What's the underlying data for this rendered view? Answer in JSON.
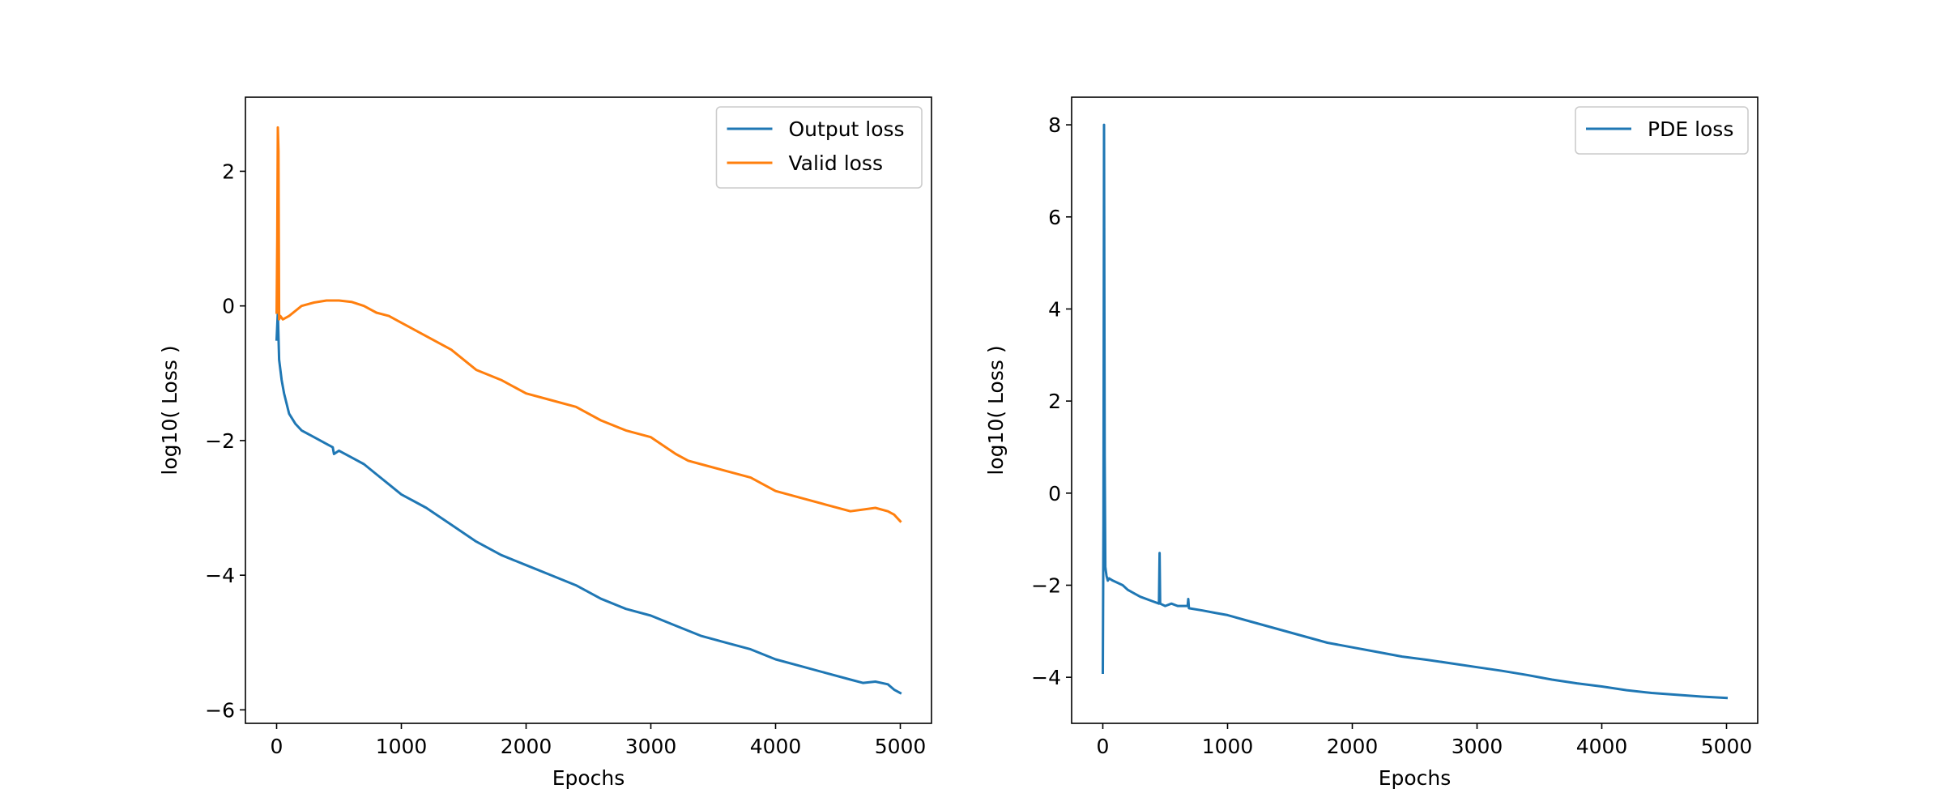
{
  "chart_data": [
    {
      "type": "line",
      "title": "",
      "xlabel": "Epochs",
      "ylabel": "log10( Loss )",
      "xlim": [
        -250,
        5250
      ],
      "ylim": [
        -6.2,
        3.1
      ],
      "xticks": [
        0,
        1000,
        2000,
        3000,
        4000,
        5000
      ],
      "yticks": [
        2,
        0,
        -2,
        -4,
        -6
      ],
      "grid": false,
      "legend_position": "top-right",
      "series": [
        {
          "name": "Output loss",
          "color": "#1f77b4",
          "x": [
            0,
            10,
            20,
            40,
            60,
            80,
            100,
            150,
            200,
            300,
            400,
            450,
            460,
            500,
            600,
            700,
            800,
            900,
            1000,
            1200,
            1400,
            1600,
            1800,
            2000,
            2200,
            2400,
            2600,
            2800,
            3000,
            3200,
            3400,
            3600,
            3800,
            4000,
            4200,
            4400,
            4600,
            4700,
            4800,
            4900,
            4950,
            5000
          ],
          "y": [
            -0.5,
            -0.1,
            -0.8,
            -1.1,
            -1.3,
            -1.45,
            -1.6,
            -1.75,
            -1.85,
            -1.95,
            -2.05,
            -2.1,
            -2.2,
            -2.15,
            -2.25,
            -2.35,
            -2.5,
            -2.65,
            -2.8,
            -3.0,
            -3.25,
            -3.5,
            -3.7,
            -3.85,
            -4.0,
            -4.15,
            -4.35,
            -4.5,
            -4.6,
            -4.75,
            -4.9,
            -5.0,
            -5.1,
            -5.25,
            -5.35,
            -5.45,
            -5.55,
            -5.6,
            -5.58,
            -5.62,
            -5.7,
            -5.75
          ]
        },
        {
          "name": "Valid loss",
          "color": "#ff7f0e",
          "x": [
            0,
            5,
            10,
            15,
            20,
            30,
            50,
            100,
            200,
            300,
            400,
            500,
            600,
            700,
            800,
            900,
            1000,
            1200,
            1400,
            1600,
            1800,
            2000,
            2200,
            2400,
            2600,
            2800,
            3000,
            3200,
            3300,
            3400,
            3600,
            3800,
            4000,
            4200,
            4400,
            4600,
            4800,
            4900,
            4950,
            5000
          ],
          "y": [
            -0.1,
            1.0,
            2.65,
            2.3,
            -0.2,
            -0.15,
            -0.2,
            -0.15,
            0.0,
            0.05,
            0.08,
            0.08,
            0.06,
            0.0,
            -0.1,
            -0.15,
            -0.25,
            -0.45,
            -0.65,
            -0.95,
            -1.1,
            -1.3,
            -1.4,
            -1.5,
            -1.7,
            -1.85,
            -1.95,
            -2.2,
            -2.3,
            -2.35,
            -2.45,
            -2.55,
            -2.75,
            -2.85,
            -2.95,
            -3.05,
            -3.0,
            -3.05,
            -3.1,
            -3.2
          ]
        }
      ]
    },
    {
      "type": "line",
      "title": "",
      "xlabel": "Epochs",
      "ylabel": "log10( Loss )",
      "xlim": [
        -250,
        5250
      ],
      "ylim": [
        -5.0,
        8.6
      ],
      "xticks": [
        0,
        1000,
        2000,
        3000,
        4000,
        5000
      ],
      "yticks": [
        8,
        6,
        4,
        2,
        0,
        -2,
        -4
      ],
      "grid": false,
      "legend_position": "top-right",
      "series": [
        {
          "name": "PDE loss",
          "color": "#1f77b4",
          "x": [
            0,
            5,
            10,
            15,
            20,
            25,
            30,
            35,
            40,
            50,
            80,
            120,
            160,
            200,
            300,
            400,
            450,
            455,
            460,
            500,
            550,
            600,
            680,
            685,
            690,
            800,
            900,
            1000,
            1200,
            1400,
            1600,
            1800,
            2000,
            2200,
            2400,
            2600,
            2800,
            3000,
            3200,
            3400,
            3600,
            3800,
            4000,
            4200,
            4400,
            4600,
            4800,
            5000
          ],
          "y": [
            -3.9,
            -0.6,
            8.0,
            0.8,
            -1.6,
            -1.7,
            -1.8,
            -1.85,
            -1.9,
            -1.85,
            -1.9,
            -1.95,
            -2.0,
            -2.1,
            -2.25,
            -2.35,
            -2.4,
            -1.3,
            -2.4,
            -2.45,
            -2.4,
            -2.45,
            -2.45,
            -2.3,
            -2.5,
            -2.55,
            -2.6,
            -2.65,
            -2.8,
            -2.95,
            -3.1,
            -3.25,
            -3.35,
            -3.45,
            -3.55,
            -3.62,
            -3.7,
            -3.78,
            -3.86,
            -3.95,
            -4.05,
            -4.13,
            -4.2,
            -4.28,
            -4.34,
            -4.38,
            -4.42,
            -4.45
          ]
        }
      ]
    }
  ]
}
